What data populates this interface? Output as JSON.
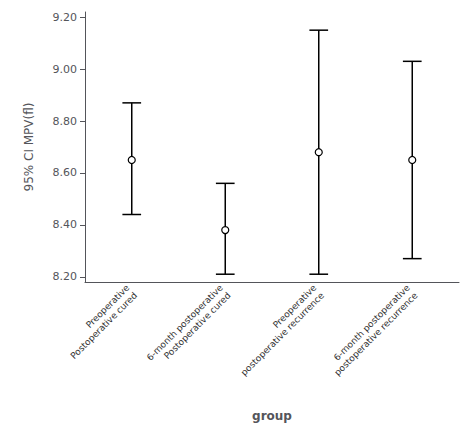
{
  "chart_data": {
    "type": "errorbar",
    "categories": [
      "Preoperative\nPostoperative cured",
      "6-month postoperative\nPostoperative cured",
      "Preoperative\npostoperative recurrence",
      "6-month postoperative\npostoperative recurrence"
    ],
    "values": [
      8.65,
      8.38,
      8.68,
      8.65
    ],
    "upper_errors": [
      0.22,
      0.18,
      0.47,
      0.38
    ],
    "lower_errors": [
      0.21,
      0.17,
      0.47,
      0.38
    ],
    "ylim": [
      8.18,
      9.22
    ],
    "yticks": [
      {
        "value": 8.2,
        "label": "8.20"
      },
      {
        "value": 8.4,
        "label": "8.40"
      },
      {
        "value": 8.6,
        "label": "8.60"
      },
      {
        "value": 8.8,
        "label": "8.80"
      },
      {
        "value": 9.0,
        "label": "9.00"
      },
      {
        "value": 9.2,
        "label": "9.20"
      }
    ],
    "ylabel": "95% CI MPV(fl)",
    "xlabel": "group",
    "color": "#000000",
    "marker": "circle",
    "grid": false
  }
}
